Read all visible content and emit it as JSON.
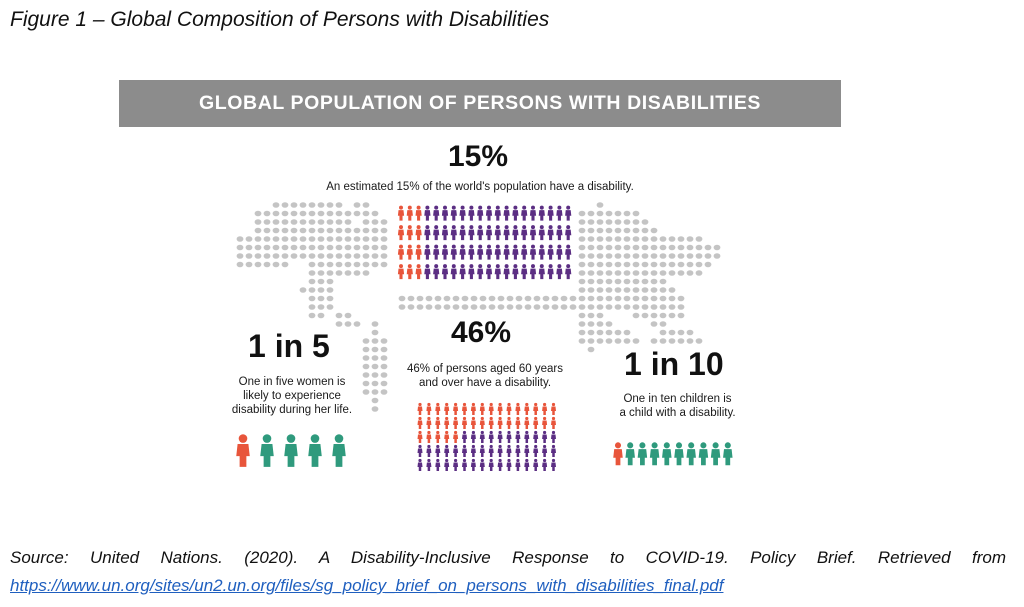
{
  "figure_caption": "Figure 1 – Global Composition of Persons with Disabilities",
  "banner_title": "GLOBAL POPULATION OF PERSONS WITH DISABILITIES",
  "stats": {
    "world": {
      "value": "15%",
      "description": "An estimated 15% of the world's population have a disability.",
      "fraction": 0.15
    },
    "women": {
      "value": "1 in 5",
      "description_lines": [
        "One in five women is",
        "likely to experience",
        "disability during her life."
      ],
      "fraction": 0.2
    },
    "older": {
      "value": "46%",
      "description_lines": [
        "46% of persons aged 60 years",
        "and over have a disability."
      ],
      "fraction": 0.46
    },
    "children": {
      "value": "1 in 10",
      "description_lines": [
        "One in ten children is",
        "a child with a disability."
      ],
      "fraction": 0.1
    }
  },
  "colors": {
    "banner": "#8c8c8c",
    "disability": "#e8553b",
    "population": "#5b2e83",
    "women": "#2f9a7d",
    "map_dot": "#c4c4c4"
  },
  "source": {
    "text": "Source: United Nations. (2020). A Disability-Inclusive Response to COVID-19. Policy Brief. Retrieved from",
    "url": "https://www.un.org/sites/un2.un.org/files/sg_policy_brief_on_persons_with_disabilities_final.pdf"
  }
}
